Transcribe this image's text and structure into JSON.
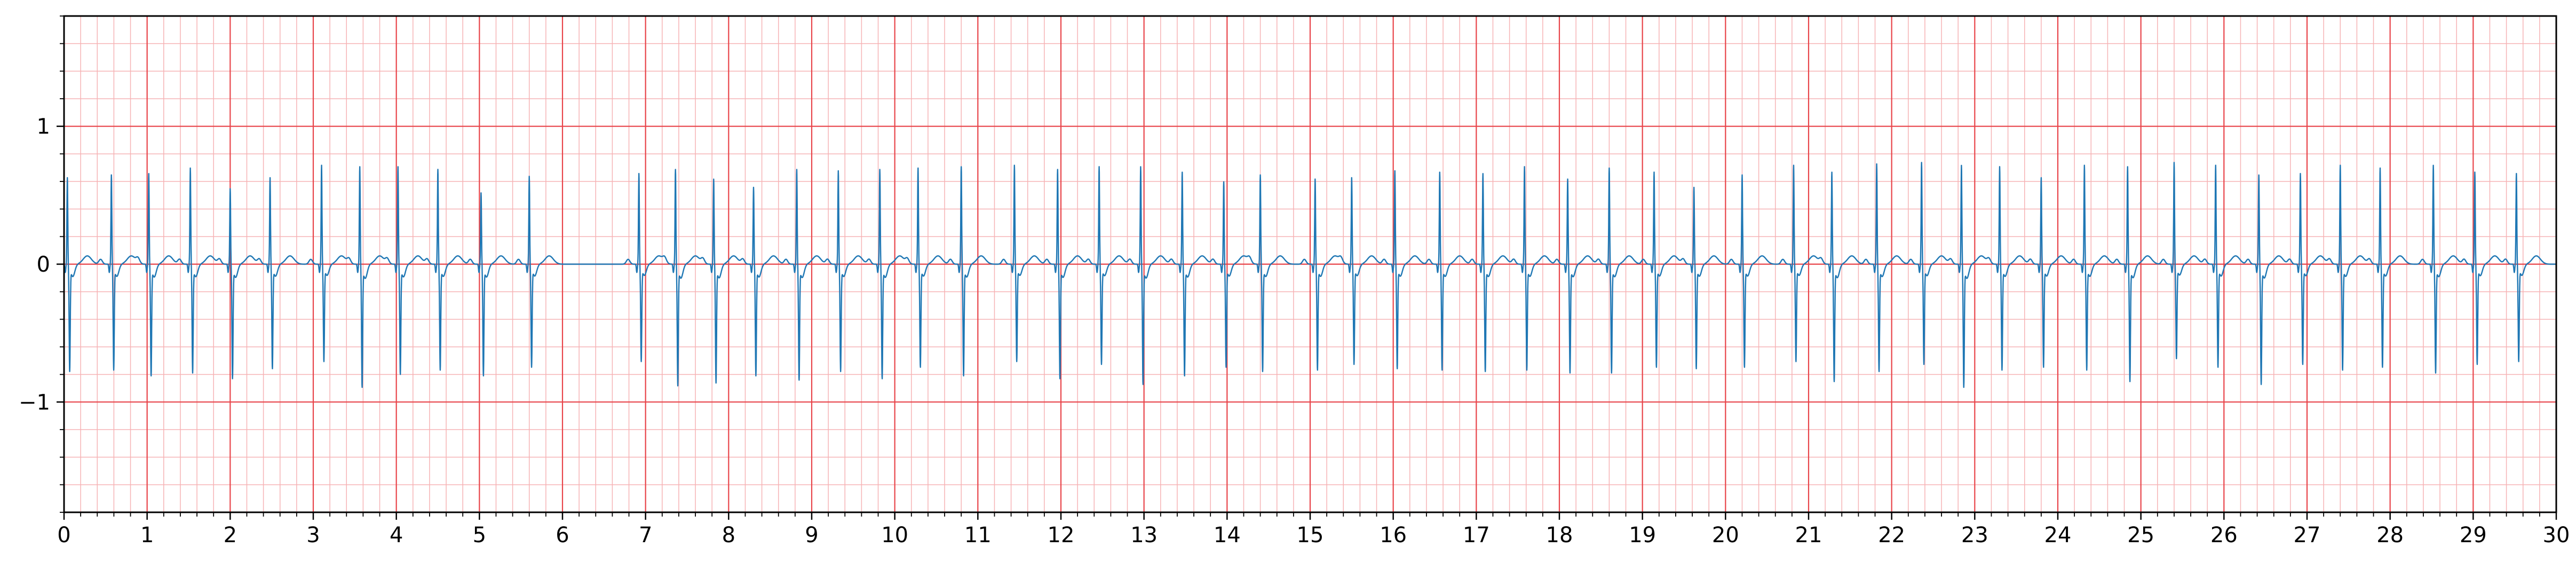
{
  "chart_data": {
    "type": "line",
    "title": "",
    "xlabel": "",
    "ylabel": "",
    "xlim": [
      0,
      30
    ],
    "ylim": [
      -1.8,
      1.8
    ],
    "x_ticks": [
      0,
      1,
      2,
      3,
      4,
      5,
      6,
      7,
      8,
      9,
      10,
      11,
      12,
      13,
      14,
      15,
      16,
      17,
      18,
      19,
      20,
      21,
      22,
      23,
      24,
      25,
      26,
      27,
      28,
      29,
      30
    ],
    "y_ticks": [
      -1,
      0,
      1
    ],
    "y_tick_labels": [
      "−1",
      "0",
      "1"
    ],
    "x_minor_step": 0.2,
    "y_minor_step": 0.2,
    "grid": "on",
    "legend": "none",
    "colors": {
      "trace": "#1f77b4",
      "grid_major": "#e8444a",
      "grid_minor": "#f6b3b5",
      "frame": "#000000"
    },
    "series": [
      {
        "sampling": "synthesized ECG-like trace; beat times and amplitudes estimated from the figure",
        "beat_times_s": [
          0.04,
          0.57,
          1.02,
          1.52,
          2.0,
          2.48,
          3.1,
          3.56,
          4.02,
          4.5,
          5.02,
          5.6,
          6.92,
          7.36,
          7.82,
          8.3,
          8.82,
          9.32,
          9.82,
          10.28,
          10.8,
          11.44,
          11.96,
          12.46,
          12.96,
          13.46,
          13.96,
          14.4,
          15.06,
          15.5,
          16.02,
          16.56,
          17.08,
          17.58,
          18.1,
          18.6,
          19.14,
          19.62,
          20.2,
          20.82,
          21.28,
          21.82,
          22.36,
          22.84,
          23.3,
          23.8,
          24.32,
          24.84,
          25.4,
          25.9,
          26.42,
          26.92,
          27.4,
          27.88,
          28.52,
          29.02,
          29.52
        ],
        "r_peak_mv": [
          0.63,
          0.65,
          0.66,
          0.7,
          0.55,
          0.63,
          0.72,
          0.71,
          0.71,
          0.69,
          0.52,
          0.64,
          0.66,
          0.69,
          0.62,
          0.56,
          0.69,
          0.68,
          0.69,
          0.7,
          0.71,
          0.72,
          0.69,
          0.71,
          0.71,
          0.67,
          0.6,
          0.65,
          0.62,
          0.63,
          0.68,
          0.67,
          0.66,
          0.71,
          0.62,
          0.7,
          0.67,
          0.56,
          0.65,
          0.72,
          0.67,
          0.73,
          0.74,
          0.72,
          0.71,
          0.63,
          0.72,
          0.71,
          0.74,
          0.72,
          0.65,
          0.66,
          0.72,
          0.7,
          0.72,
          0.67,
          0.66
        ],
        "s_trough_mv": [
          -0.75,
          -0.74,
          -0.78,
          -0.76,
          -0.8,
          -0.73,
          -0.68,
          -0.86,
          -0.77,
          -0.74,
          -0.78,
          -0.72,
          -0.68,
          -0.85,
          -0.83,
          -0.78,
          -0.81,
          -0.75,
          -0.8,
          -0.72,
          -0.78,
          -0.68,
          -0.8,
          -0.7,
          -0.84,
          -0.78,
          -0.72,
          -0.75,
          -0.74,
          -0.7,
          -0.73,
          -0.74,
          -0.75,
          -0.74,
          -0.76,
          -0.76,
          -0.72,
          -0.73,
          -0.72,
          -0.68,
          -0.82,
          -0.75,
          -0.7,
          -0.86,
          -0.74,
          -0.72,
          -0.74,
          -0.82,
          -0.66,
          -0.72,
          -0.84,
          -0.7,
          -0.74,
          -0.72,
          -0.76,
          -0.7,
          -0.68
        ],
        "t_wave_mv": 0.06
      }
    ]
  }
}
